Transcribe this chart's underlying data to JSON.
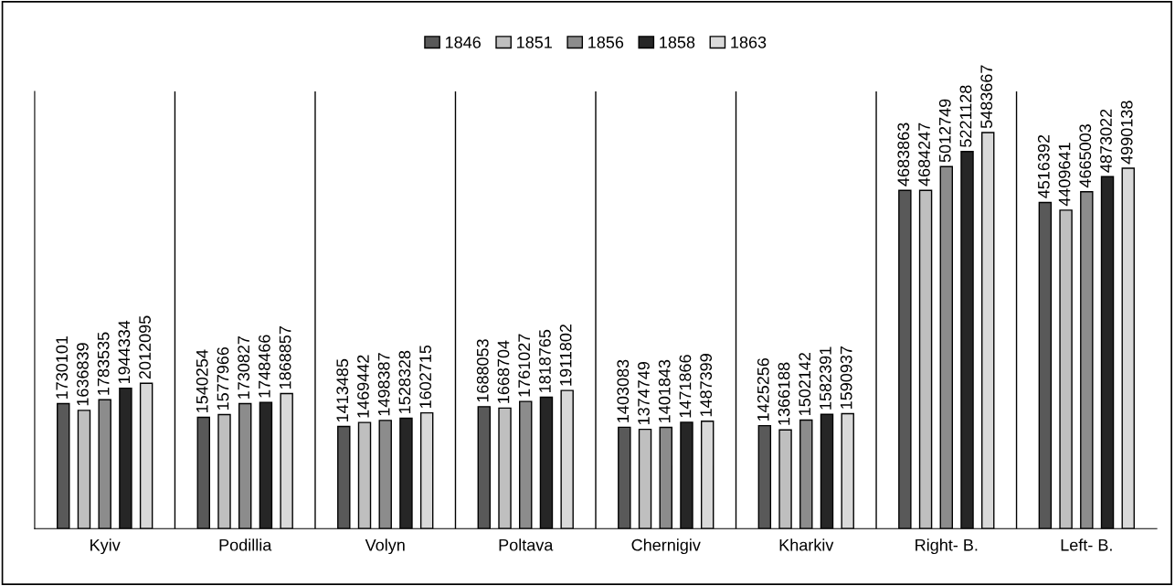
{
  "chart_data": {
    "type": "bar",
    "categories": [
      "Kyiv",
      "Podillia",
      "Volyn",
      "Poltava",
      "Chernigiv",
      "Kharkiv",
      "Right- B.",
      "Left- B."
    ],
    "series": [
      {
        "name": "1846",
        "color": "#595959",
        "values": [
          1730101,
          1540254,
          1413485,
          1688053,
          1403083,
          1425256,
          4683863,
          4516392
        ]
      },
      {
        "name": "1851",
        "color": "#bfbfbf",
        "values": [
          1636839,
          1577966,
          1469442,
          1668704,
          1374749,
          1366188,
          4684247,
          4409641
        ]
      },
      {
        "name": "1856",
        "color": "#8c8c8c",
        "values": [
          1783535,
          1730827,
          1498387,
          1761027,
          1401843,
          1502142,
          5012749,
          4665003
        ]
      },
      {
        "name": "1858",
        "color": "#262626",
        "values": [
          1944334,
          1748466,
          1528328,
          1818765,
          1471866,
          1582391,
          5221128,
          4873022
        ]
      },
      {
        "name": "1863",
        "color": "#d9d9d9",
        "values": [
          2012095,
          1868857,
          1602715,
          1911802,
          1487399,
          1590937,
          5483667,
          4990138
        ]
      }
    ],
    "data_labels": true,
    "grid": "x",
    "legend": "top",
    "tick_labels": "x"
  }
}
